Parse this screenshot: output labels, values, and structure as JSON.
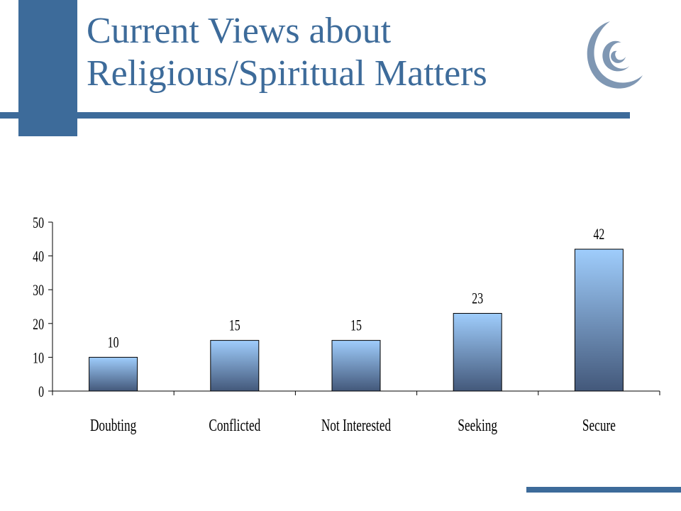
{
  "slide": {
    "title_line1": "Current Views about",
    "title_line2": "Religious/Spiritual Matters",
    "colors": {
      "accent": "#3d6b9a",
      "title": "#3d6b9a",
      "bar_top": "#9fcdfc",
      "bar_bottom": "#43587a",
      "logo": "#7f97b3"
    },
    "logo_icon": "swirl-logo-icon"
  },
  "chart_data": {
    "type": "bar",
    "categories": [
      "Doubting",
      "Conflicted",
      "Not Interested",
      "Seeking",
      "Secure"
    ],
    "values": [
      10,
      15,
      15,
      23,
      42
    ],
    "data_labels": [
      "10",
      "15",
      "15",
      "23",
      "42"
    ],
    "title": "",
    "xlabel": "",
    "ylabel": "",
    "ylim": [
      0,
      50
    ],
    "yticks": [
      0,
      10,
      20,
      30,
      40,
      50
    ],
    "ytick_labels": [
      "0",
      "10",
      "20",
      "30",
      "40",
      "50"
    ],
    "grid": false,
    "legend": "none"
  }
}
